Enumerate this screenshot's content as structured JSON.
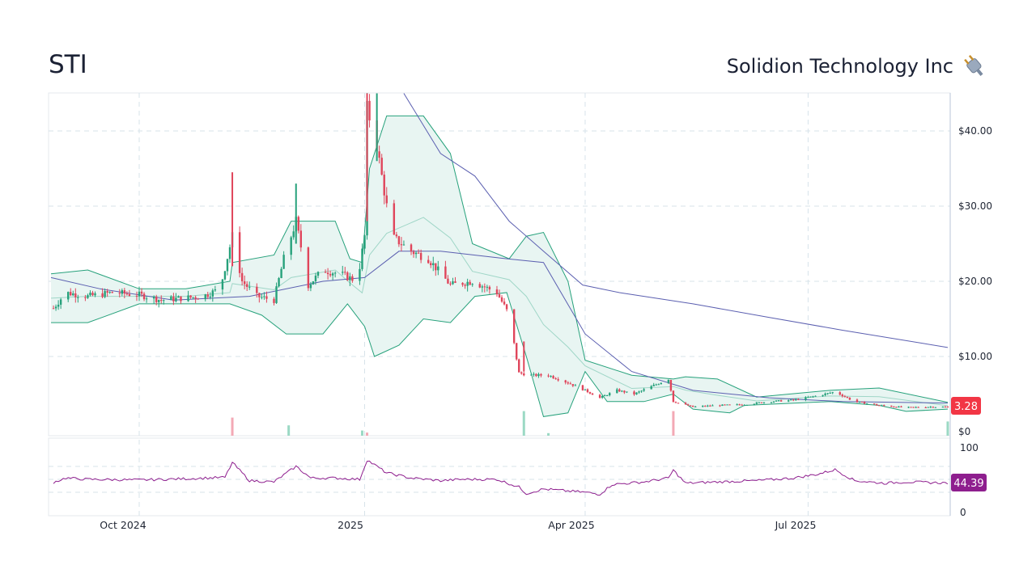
{
  "header": {
    "ticker": "STI",
    "company_name": "Solidion Technology Inc",
    "logo_icon": "plug-icon"
  },
  "chart_data": [
    {
      "type": "candlestick",
      "panel": "price",
      "title": "",
      "ylabel": "",
      "ylim": [
        0,
        45
      ],
      "y_ticks": [
        "$0",
        "$10.00",
        "$20.00",
        "$30.00",
        "$40.00"
      ],
      "x_ticks": [
        "Oct 2024",
        "2025",
        "Apr 2025",
        "Jul 2025"
      ],
      "grid": true,
      "colors": {
        "up": "#26a17b",
        "down": "#e0455b",
        "band": "#26a17b",
        "band_fill": "#e8f5f2",
        "sma": "#5b5fb0",
        "last_price_badge": "#f23645"
      },
      "last_price_label": "3.28",
      "price_points": [
        [
          "2024-08-26",
          16.0
        ],
        [
          "2024-09-01",
          18.5
        ],
        [
          "2024-09-10",
          18.0
        ],
        [
          "2024-09-20",
          18.5
        ],
        [
          "2024-10-01",
          18.2
        ],
        [
          "2024-10-10",
          17.5
        ],
        [
          "2024-10-20",
          17.8
        ],
        [
          "2024-10-27",
          18.0
        ],
        [
          "2024-11-03",
          19.0
        ],
        [
          "2024-11-08",
          26.0
        ],
        [
          "2024-11-12",
          20.0
        ],
        [
          "2024-11-18",
          18.0
        ],
        [
          "2024-11-25",
          17.5
        ],
        [
          "2024-11-29",
          23.0
        ],
        [
          "2024-12-04",
          28.0
        ],
        [
          "2024-12-09",
          19.5
        ],
        [
          "2024-12-15",
          21.5
        ],
        [
          "2024-12-22",
          21.0
        ],
        [
          "2024-12-29",
          20.0
        ],
        [
          "2025-01-01",
          26.0
        ],
        [
          "2025-01-02",
          43.0
        ],
        [
          "2025-01-06",
          38.0
        ],
        [
          "2025-01-12",
          26.0
        ],
        [
          "2025-01-20",
          24.0
        ],
        [
          "2025-01-27",
          23.0
        ],
        [
          "2025-02-05",
          19.5
        ],
        [
          "2025-02-14",
          20.0
        ],
        [
          "2025-02-24",
          18.5
        ],
        [
          "2025-03-01",
          15.5
        ],
        [
          "2025-03-05",
          7.8
        ],
        [
          "2025-03-10",
          7.5
        ],
        [
          "2025-03-17",
          7.5
        ],
        [
          "2025-03-25",
          6.5
        ],
        [
          "2025-04-01",
          5.5
        ],
        [
          "2025-04-07",
          4.5
        ],
        [
          "2025-04-14",
          5.5
        ],
        [
          "2025-04-21",
          5.0
        ],
        [
          "2025-04-28",
          6.0
        ],
        [
          "2025-05-05",
          7.0
        ],
        [
          "2025-05-07",
          4.0
        ],
        [
          "2025-05-15",
          3.3
        ],
        [
          "2025-05-25",
          3.5
        ],
        [
          "2025-06-05",
          3.6
        ],
        [
          "2025-06-15",
          4.0
        ],
        [
          "2025-06-25",
          4.2
        ],
        [
          "2025-07-05",
          4.8
        ],
        [
          "2025-07-12",
          5.3
        ],
        [
          "2025-07-20",
          4.0
        ],
        [
          "2025-07-30",
          3.5
        ],
        [
          "2025-08-10",
          3.2
        ],
        [
          "2025-08-20",
          3.3
        ],
        [
          "2025-08-27",
          3.28
        ]
      ],
      "bollinger_upper": [
        [
          "2024-08-26",
          21.0
        ],
        [
          "2024-09-10",
          21.5
        ],
        [
          "2024-10-01",
          19.0
        ],
        [
          "2024-10-20",
          19.0
        ],
        [
          "2024-11-07",
          20.0
        ],
        [
          "2024-11-08",
          22.5
        ],
        [
          "2024-11-25",
          23.5
        ],
        [
          "2024-12-02",
          28.0
        ],
        [
          "2024-12-20",
          28.0
        ],
        [
          "2024-12-26",
          23.0
        ],
        [
          "2024-12-31",
          22.5
        ],
        [
          "2025-01-03",
          35.0
        ],
        [
          "2025-01-10",
          42.0
        ],
        [
          "2025-01-25",
          42.0
        ],
        [
          "2025-02-05",
          37.0
        ],
        [
          "2025-02-14",
          25.0
        ],
        [
          "2025-03-01",
          23.0
        ],
        [
          "2025-03-08",
          26.0
        ],
        [
          "2025-03-15",
          26.5
        ],
        [
          "2025-03-25",
          20.0
        ],
        [
          "2025-04-01",
          9.5
        ],
        [
          "2025-04-20",
          7.5
        ],
        [
          "2025-05-07",
          7.0
        ],
        [
          "2025-05-12",
          7.3
        ],
        [
          "2025-05-25",
          7.0
        ],
        [
          "2025-06-10",
          4.6
        ],
        [
          "2025-07-10",
          5.5
        ],
        [
          "2025-07-30",
          5.8
        ],
        [
          "2025-08-27",
          3.9
        ]
      ],
      "bollinger_lower": [
        [
          "2024-08-26",
          14.5
        ],
        [
          "2024-09-10",
          14.5
        ],
        [
          "2024-10-01",
          17.0
        ],
        [
          "2024-11-07",
          17.0
        ],
        [
          "2024-11-20",
          15.5
        ],
        [
          "2024-11-30",
          13.0
        ],
        [
          "2024-12-15",
          13.0
        ],
        [
          "2024-12-25",
          17.0
        ],
        [
          "2025-01-01",
          14.0
        ],
        [
          "2025-01-05",
          10.0
        ],
        [
          "2025-01-15",
          11.5
        ],
        [
          "2025-01-25",
          15.0
        ],
        [
          "2025-02-05",
          14.5
        ],
        [
          "2025-02-15",
          18.0
        ],
        [
          "2025-02-28",
          18.5
        ],
        [
          "2025-03-08",
          10.0
        ],
        [
          "2025-03-15",
          2.0
        ],
        [
          "2025-03-25",
          2.5
        ],
        [
          "2025-04-01",
          8.0
        ],
        [
          "2025-04-10",
          4.0
        ],
        [
          "2025-04-25",
          4.0
        ],
        [
          "2025-05-07",
          5.0
        ],
        [
          "2025-05-15",
          3.0
        ],
        [
          "2025-05-30",
          2.5
        ],
        [
          "2025-06-05",
          3.5
        ],
        [
          "2025-07-10",
          4.0
        ],
        [
          "2025-07-30",
          3.5
        ],
        [
          "2025-08-10",
          2.7
        ],
        [
          "2025-08-27",
          3.0
        ]
      ],
      "sma_long": [
        [
          "2024-08-26",
          20.5
        ],
        [
          "2024-09-15",
          19.0
        ],
        [
          "2024-10-15",
          17.5
        ],
        [
          "2024-11-15",
          18.0
        ],
        [
          "2024-12-15",
          20.0
        ],
        [
          "2025-01-01",
          20.5
        ],
        [
          "2025-01-15",
          24.0
        ],
        [
          "2025-02-01",
          24.0
        ],
        [
          "2025-02-28",
          23.0
        ],
        [
          "2025-03-15",
          22.5
        ],
        [
          "2025-04-01",
          13.0
        ],
        [
          "2025-04-20",
          8.0
        ],
        [
          "2025-05-15",
          5.5
        ],
        [
          "2025-06-15",
          4.5
        ],
        [
          "2025-07-15",
          4.0
        ],
        [
          "2025-08-27",
          3.8
        ]
      ],
      "sma_200": [
        [
          "2025-01-17",
          45.0
        ],
        [
          "2025-02-01",
          37.0
        ],
        [
          "2025-02-15",
          34.0
        ],
        [
          "2025-03-01",
          28.0
        ],
        [
          "2025-03-15",
          24.0
        ],
        [
          "2025-03-31",
          19.5
        ],
        [
          "2025-04-15",
          18.5
        ],
        [
          "2025-05-15",
          17.0
        ],
        [
          "2025-06-15",
          15.2
        ],
        [
          "2025-07-15",
          13.5
        ],
        [
          "2025-08-27",
          11.2
        ]
      ],
      "volume_spikes": [
        [
          "2024-11-08",
          0.7
        ],
        [
          "2024-12-01",
          0.4
        ],
        [
          "2024-12-31",
          0.2
        ],
        [
          "2025-01-02",
          0.12
        ],
        [
          "2025-03-07",
          0.95
        ],
        [
          "2025-03-17",
          0.1
        ],
        [
          "2025-05-07",
          0.95
        ],
        [
          "2025-08-27",
          0.55
        ]
      ]
    },
    {
      "type": "line",
      "panel": "rsi",
      "title": "",
      "ylim": [
        0,
        100
      ],
      "y_ticks": [
        "0",
        "100"
      ],
      "guides": [
        30,
        50,
        70
      ],
      "color": "#8e1e8e",
      "last_value_label": "44.39",
      "values": [
        [
          "2024-08-26",
          44
        ],
        [
          "2024-09-01",
          52
        ],
        [
          "2024-09-10",
          50
        ],
        [
          "2024-10-01",
          49
        ],
        [
          "2024-10-20",
          51
        ],
        [
          "2024-11-05",
          53
        ],
        [
          "2024-11-08",
          76
        ],
        [
          "2024-11-15",
          48
        ],
        [
          "2024-11-25",
          46
        ],
        [
          "2024-12-04",
          70
        ],
        [
          "2024-12-10",
          52
        ],
        [
          "2024-12-20",
          52
        ],
        [
          "2024-12-30",
          50
        ],
        [
          "2025-01-02",
          80
        ],
        [
          "2025-01-10",
          60
        ],
        [
          "2025-01-20",
          52
        ],
        [
          "2025-02-01",
          48
        ],
        [
          "2025-02-10",
          50
        ],
        [
          "2025-02-24",
          50
        ],
        [
          "2025-03-05",
          38
        ],
        [
          "2025-03-08",
          28
        ],
        [
          "2025-03-15",
          35
        ],
        [
          "2025-03-25",
          32
        ],
        [
          "2025-04-01",
          30
        ],
        [
          "2025-04-07",
          27
        ],
        [
          "2025-04-12",
          42
        ],
        [
          "2025-04-25",
          46
        ],
        [
          "2025-05-05",
          52
        ],
        [
          "2025-05-07",
          64
        ],
        [
          "2025-05-12",
          44
        ],
        [
          "2025-05-25",
          46
        ],
        [
          "2025-06-10",
          48
        ],
        [
          "2025-06-25",
          52
        ],
        [
          "2025-07-05",
          58
        ],
        [
          "2025-07-12",
          65
        ],
        [
          "2025-07-20",
          48
        ],
        [
          "2025-08-01",
          44
        ],
        [
          "2025-08-10",
          46
        ],
        [
          "2025-08-20",
          45
        ],
        [
          "2025-08-27",
          44.39
        ]
      ]
    }
  ]
}
